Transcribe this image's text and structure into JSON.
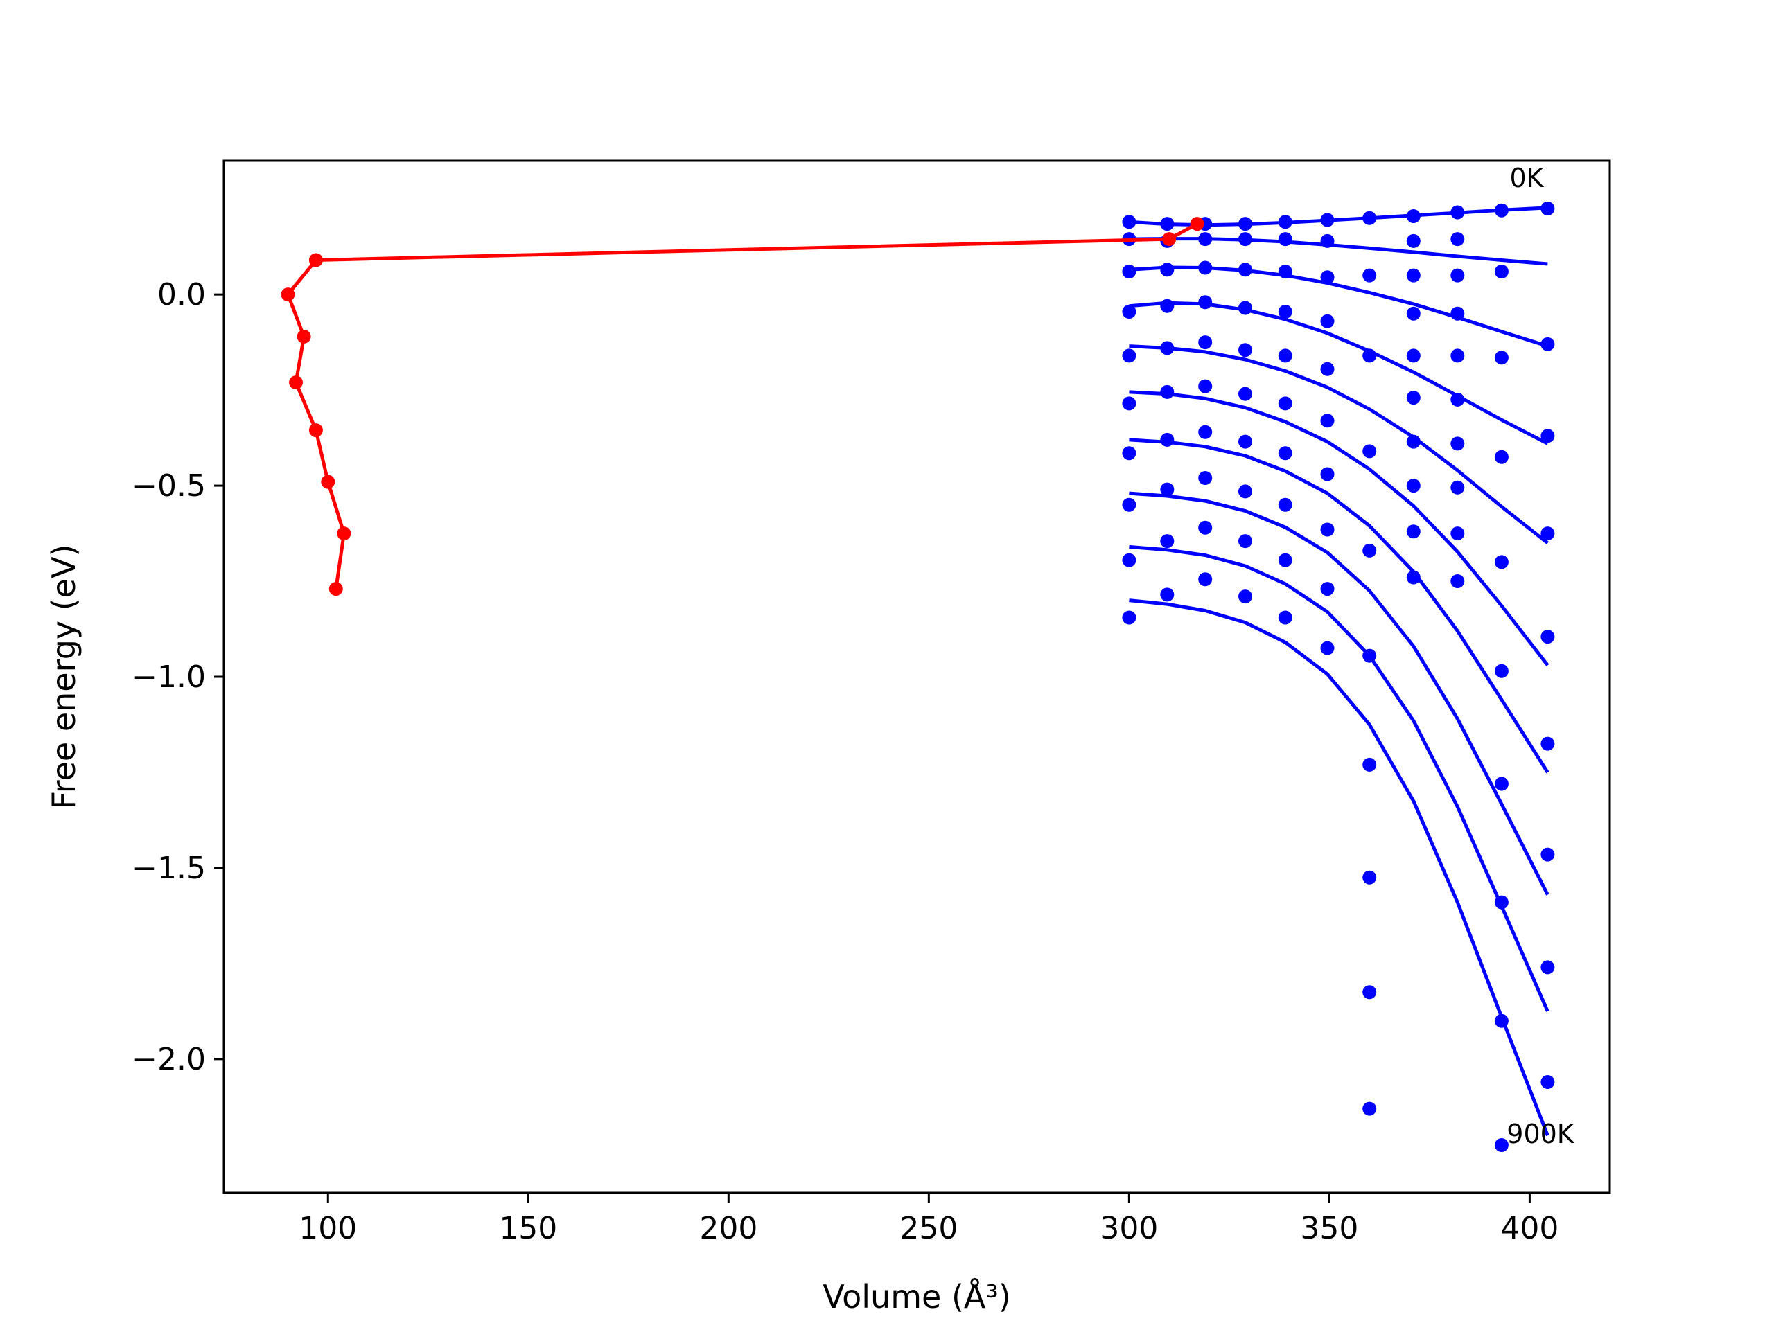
{
  "chart_data": {
    "type": "line",
    "title": "",
    "xlabel": "Volume (Å³)",
    "ylabel": "Free energy (eV)",
    "xlim": [
      74,
      420
    ],
    "ylim": [
      -2.35,
      0.35
    ],
    "grid": false,
    "x_ticks": [
      100,
      150,
      200,
      250,
      300,
      350,
      400
    ],
    "x_tick_labels": [
      "100",
      "150",
      "200",
      "250",
      "300",
      "350",
      "400"
    ],
    "y_ticks": [
      0.0,
      -0.5,
      -1.0,
      -1.5,
      -2.0
    ],
    "y_tick_labels": [
      "0.0",
      "−0.5",
      "−1.0",
      "−1.5",
      "−2.0"
    ],
    "annotations": [
      {
        "text": "0K",
        "x": 400,
        "y": 0.3
      },
      {
        "text": "900K",
        "x": 402,
        "y": -2.2
      }
    ],
    "colors": {
      "points": "#0000ff",
      "fits": "#0000ff",
      "path": "#ff0000",
      "axes": "#000000"
    },
    "volumes": [
      300,
      309.5,
      319,
      329,
      339,
      349.5,
      360,
      371,
      382,
      393,
      404.5
    ],
    "series": [
      {
        "values": [
          0.19,
          0.185,
          0.185,
          0.185,
          0.19,
          0.195,
          0.2,
          0.205,
          0.215,
          0.22,
          0.225
        ],
        "fit_values": [
          0.19,
          0.184,
          0.182,
          0.184,
          0.188,
          0.194,
          0.2,
          0.207,
          0.214,
          0.221,
          0.227
        ]
      },
      {
        "values": [
          0.145,
          0.14,
          0.145,
          0.145,
          0.145,
          0.14,
          null,
          0.14,
          0.145,
          null,
          null
        ],
        "fit_values": [
          0.145,
          0.146,
          0.146,
          0.143,
          0.138,
          0.13,
          0.121,
          0.111,
          0.1,
          0.09,
          0.08
        ]
      },
      {
        "values": [
          0.06,
          0.065,
          0.07,
          0.065,
          0.06,
          0.045,
          0.05,
          0.05,
          0.05,
          0.06,
          null
        ],
        "fit_values": [
          0.065,
          0.071,
          0.07,
          0.063,
          0.05,
          0.03,
          0.005,
          -0.025,
          -0.06,
          -0.097,
          -0.135
        ]
      },
      {
        "values": [
          -0.045,
          -0.03,
          -0.02,
          -0.035,
          -0.045,
          -0.07,
          null,
          -0.05,
          -0.05,
          -0.165,
          -0.13
        ],
        "fit_values": [
          -0.03,
          -0.022,
          -0.025,
          -0.04,
          -0.065,
          -0.101,
          -0.148,
          -0.203,
          -0.265,
          -0.328,
          -0.39
        ]
      },
      {
        "values": [
          -0.16,
          -0.14,
          -0.125,
          -0.145,
          -0.16,
          -0.195,
          -0.16,
          -0.16,
          -0.16,
          -0.425,
          -0.37
        ],
        "fit_values": [
          -0.135,
          -0.14,
          -0.15,
          -0.17,
          -0.2,
          -0.243,
          -0.3,
          -0.373,
          -0.46,
          -0.555,
          -0.65
        ]
      },
      {
        "values": [
          -0.285,
          -0.255,
          -0.24,
          -0.26,
          -0.285,
          -0.33,
          -0.41,
          -0.27,
          -0.275,
          -0.7,
          -0.625
        ],
        "fit_values": [
          -0.255,
          -0.26,
          -0.272,
          -0.296,
          -0.333,
          -0.385,
          -0.457,
          -0.553,
          -0.673,
          -0.814,
          -0.97
        ]
      },
      {
        "values": [
          -0.415,
          -0.38,
          -0.36,
          -0.385,
          -0.415,
          -0.47,
          -0.67,
          -0.385,
          -0.39,
          -0.985,
          -0.895
        ],
        "fit_values": [
          -0.38,
          -0.386,
          -0.398,
          -0.422,
          -0.462,
          -0.52,
          -0.605,
          -0.725,
          -0.88,
          -1.06,
          -1.25
        ]
      },
      {
        "values": [
          -0.55,
          -0.51,
          -0.48,
          -0.515,
          -0.55,
          -0.615,
          -0.945,
          -0.5,
          -0.505,
          -1.28,
          -1.175
        ],
        "fit_values": [
          -0.52,
          -0.527,
          -0.54,
          -0.566,
          -0.609,
          -0.675,
          -0.775,
          -0.92,
          -1.11,
          -1.333,
          -1.57
        ]
      },
      {
        "values": [
          -0.695,
          -0.645,
          -0.61,
          -0.645,
          -0.695,
          -0.77,
          -1.23,
          -0.62,
          -0.625,
          -1.59,
          -1.465
        ],
        "fit_values": [
          -0.66,
          -0.668,
          -0.682,
          -0.71,
          -0.757,
          -0.83,
          -0.945,
          -1.115,
          -1.34,
          -1.6,
          -1.875
        ]
      },
      {
        "values": [
          -0.845,
          -0.785,
          -0.745,
          -0.79,
          -0.845,
          -0.925,
          -1.525,
          -0.74,
          -0.75,
          -1.9,
          -1.76
        ],
        "fit_values": [
          -0.8,
          -0.81,
          -0.827,
          -0.858,
          -0.91,
          -0.993,
          -1.125,
          -1.325,
          -1.59,
          -1.89,
          -2.2
        ]
      },
      {
        "values": [
          null,
          null,
          null,
          null,
          null,
          null,
          -1.825,
          null,
          null,
          null,
          -2.06
        ]
      },
      {
        "values": [
          null,
          null,
          null,
          null,
          null,
          null,
          -2.13,
          null,
          null,
          -2.225,
          null
        ]
      }
    ],
    "red_path": {
      "x": [
        317,
        310,
        97,
        90,
        94,
        92,
        97,
        100,
        104,
        102
      ],
      "y": [
        0.185,
        0.145,
        0.09,
        0.0,
        -0.11,
        -0.23,
        -0.355,
        -0.49,
        -0.625,
        -0.77
      ]
    }
  }
}
